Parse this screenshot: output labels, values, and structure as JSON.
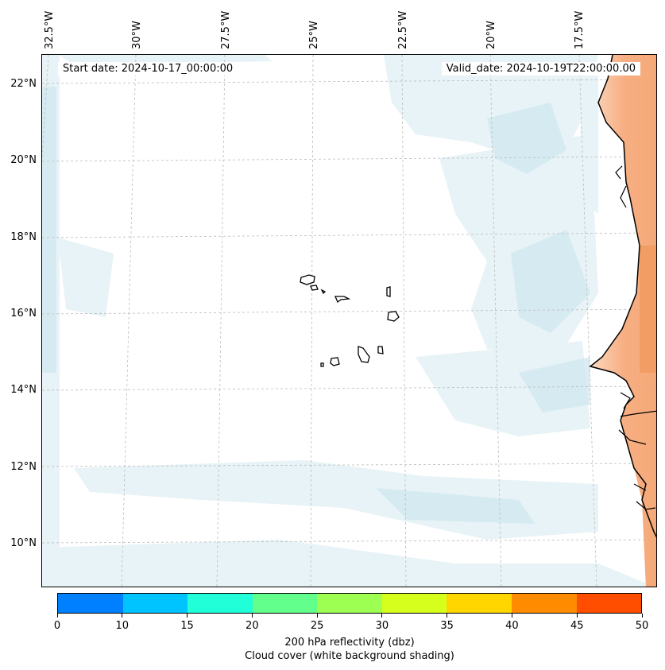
{
  "map": {
    "start_date_label": "Start date: 2024-10-17_00:00:00",
    "valid_date_label": "Valid_date: 2024-10-19T22:00:00.00",
    "longitude_labels": [
      "32.5°W",
      "30°W",
      "27.5°W",
      "25°W",
      "22.5°W",
      "20°W",
      "17.5°W"
    ],
    "latitude_labels": [
      "22°N",
      "20°N",
      "18°N",
      "16°N",
      "14°N",
      "12°N",
      "10°N"
    ],
    "colors": {
      "cloud_light": "#e6f2f6",
      "cloud_mid": "#cde6ee",
      "land_shading": "#f6a574",
      "land_shading_strong": "#f09a5e",
      "coastline": "#000000",
      "gridline": "#bbbbbb"
    }
  },
  "colorbar": {
    "tick_labels": [
      "0",
      "10",
      "15",
      "20",
      "25",
      "30",
      "35",
      "40",
      "45",
      "50"
    ],
    "colors": [
      "#0080ff",
      "#00c4ff",
      "#20ffd8",
      "#62ff8c",
      "#9cff52",
      "#d6ff1e",
      "#ffd600",
      "#ff8c00",
      "#ff4e00"
    ],
    "label_line1": "200 hPa reflectivity (dbz)",
    "label_line2": "Cloud cover (white background shading)"
  }
}
